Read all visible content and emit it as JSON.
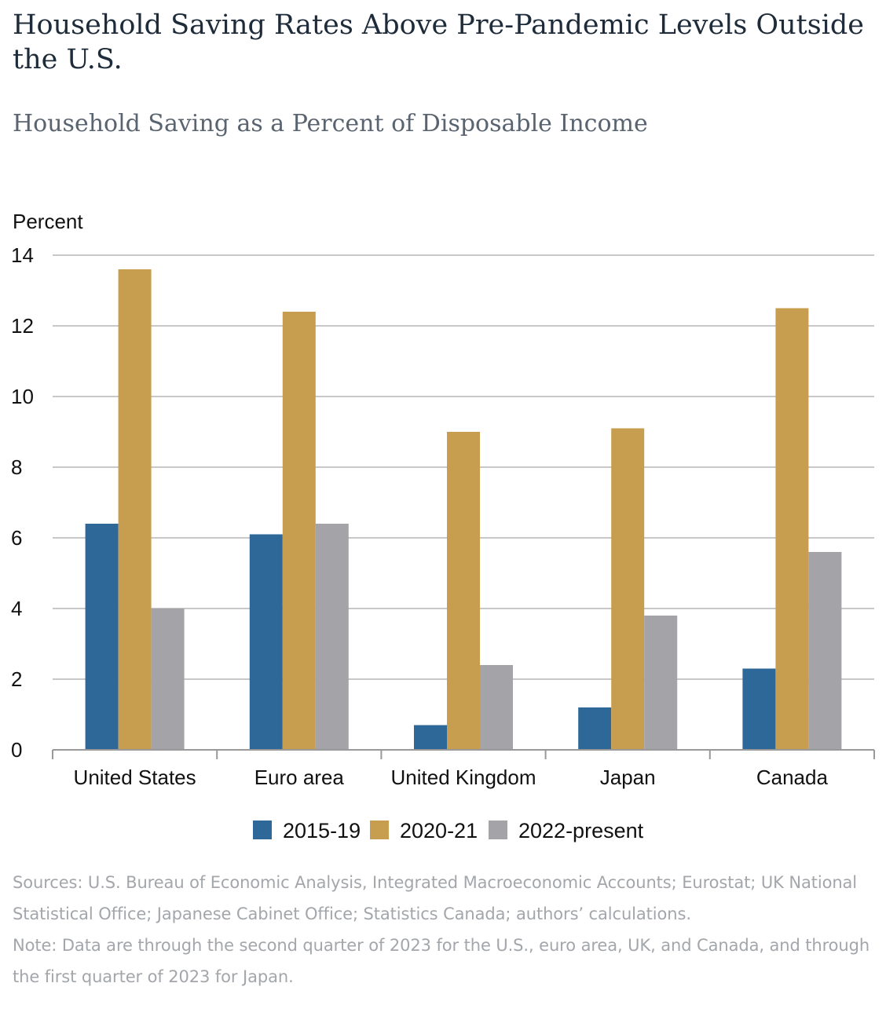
{
  "title": "Household Saving Rates Above Pre-Pandemic Levels Outside the U.S.",
  "subtitle": "Household Saving as a Percent of Disposable Income",
  "sources": "Sources: U.S. Bureau of Economic Analysis, Integrated Macroeconomic Accounts; Eurostat; UK National Statistical Office; Japanese Cabinet Office; Statistics Canada; authors’ calculations.",
  "note": "Note: Data are through the second quarter of 2023 for the U.S., euro area, UK, and Canada, and through the first quarter of 2023 for Japan.",
  "colors": {
    "gridline": "#c8c8c8",
    "axis": "#999999"
  },
  "chart_data": {
    "type": "bar",
    "ylabel": "Percent",
    "xlabel": "",
    "ylim": [
      0,
      14
    ],
    "yticks": [
      0,
      2,
      4,
      6,
      8,
      10,
      12,
      14
    ],
    "grid": true,
    "legend_position": "bottom",
    "categories": [
      "United States",
      "Euro area",
      "United Kingdom",
      "Japan",
      "Canada"
    ],
    "series": [
      {
        "name": "2015-19",
        "color": "#2e6898",
        "values": [
          6.4,
          6.1,
          0.7,
          1.2,
          2.3
        ]
      },
      {
        "name": "2020-21",
        "color": "#c79d4f",
        "values": [
          13.6,
          12.4,
          9.0,
          9.1,
          12.5
        ]
      },
      {
        "name": "2022-present",
        "color": "#a3a3a8",
        "values": [
          4.0,
          6.4,
          2.4,
          3.8,
          5.6
        ]
      }
    ]
  }
}
